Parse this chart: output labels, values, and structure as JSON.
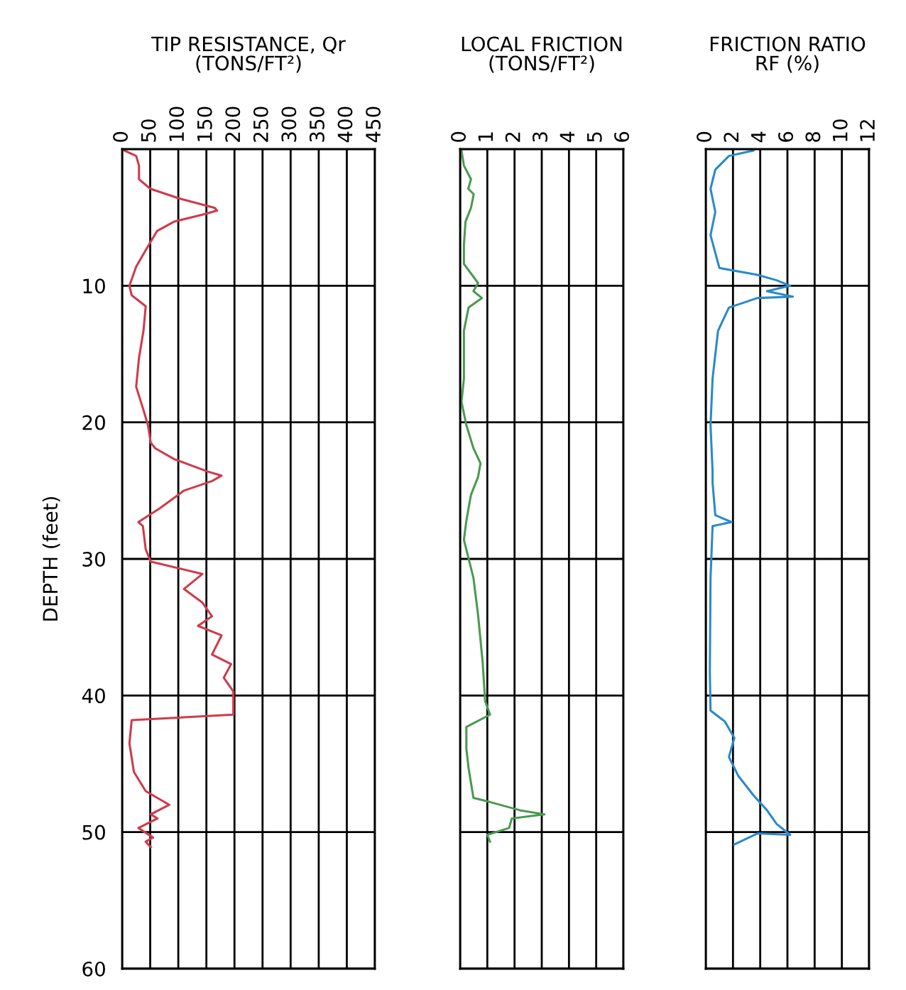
{
  "chart_data": [
    {
      "type": "line",
      "title": "TIP RESISTANCE, Qr\n(TONS/FT²)",
      "ylabel": "DEPTH (feet)",
      "xlim": [
        0,
        450
      ],
      "xticks": [
        0,
        50,
        100,
        150,
        200,
        250,
        300,
        350,
        400,
        450
      ],
      "ylim": [
        60,
        0
      ],
      "yticks": [
        10,
        20,
        30,
        40,
        50,
        60
      ],
      "grid": true,
      "series": [
        {
          "color": "#d03a4a",
          "x": [
            4,
            25,
            30,
            30,
            50,
            101,
            165,
            169,
            143,
            93,
            62,
            42,
            25,
            13,
            17,
            42,
            38,
            30,
            25,
            38,
            46,
            51,
            59,
            93,
            152,
            177,
            160,
            110,
            67,
            29,
            37,
            42,
            51,
            143,
            110,
            143,
            160,
            135,
            177,
            160,
            194,
            181,
            198,
            198,
            17,
            13,
            21,
            42,
            84,
            51,
            63,
            29,
            55,
            42,
            51
          ],
          "values": [
            0.1,
            0.5,
            1.2,
            2.2,
            2.9,
            3.6,
            4.3,
            4.5,
            4.8,
            5.3,
            6.0,
            7.4,
            8.6,
            10.0,
            10.7,
            11.5,
            13.3,
            15.3,
            17.4,
            19.1,
            20.2,
            21.5,
            21.9,
            22.7,
            23.6,
            23.9,
            24.3,
            25.0,
            26.3,
            27.3,
            27.6,
            29.3,
            30.2,
            31.1,
            32.2,
            33.2,
            34.2,
            34.9,
            35.6,
            37.0,
            37.7,
            38.7,
            39.7,
            41.4,
            41.8,
            43.5,
            45.6,
            47.0,
            48.0,
            48.7,
            49.0,
            49.7,
            50.4,
            50.7,
            51.1
          ]
        }
      ]
    },
    {
      "type": "line",
      "title": "LOCAL FRICTION\n(TONS/FT²)",
      "xlim": [
        0,
        6
      ],
      "xticks": [
        0,
        1,
        2,
        3,
        4,
        5,
        6
      ],
      "ylim": [
        60,
        0
      ],
      "yticks": [
        10,
        20,
        30,
        40,
        50,
        60
      ],
      "grid": true,
      "tick_labels": "x",
      "series": [
        {
          "color": "#4a9a50",
          "x": [
            0.05,
            0.14,
            0.4,
            0.3,
            0.5,
            0.4,
            0.2,
            0.14,
            0.14,
            0.66,
            0.49,
            0.8,
            0.31,
            0.14,
            0.14,
            0.05,
            0.23,
            0.49,
            0.75,
            0.66,
            0.4,
            0.23,
            0.14,
            0.49,
            0.66,
            0.83,
            0.92,
            1.1,
            0.23,
            0.23,
            0.31,
            0.49,
            1.1,
            2.2,
            3.1,
            1.9,
            1.8,
            1.0,
            1.1
          ],
          "values": [
            0.1,
            1.2,
            2.2,
            2.9,
            3.3,
            4.3,
            5.3,
            7.0,
            8.4,
            9.8,
            10.4,
            10.9,
            11.6,
            13.3,
            16.8,
            18.5,
            20.2,
            21.9,
            23.0,
            24.0,
            25.3,
            27.2,
            28.6,
            31.4,
            34.1,
            37.6,
            40.4,
            41.4,
            42.3,
            43.9,
            45.3,
            47.5,
            47.8,
            48.4,
            48.7,
            49.0,
            49.7,
            50.2,
            50.7
          ]
        }
      ]
    },
    {
      "type": "line",
      "title": "FRICTION RATIO\nRF (%)",
      "xlim": [
        0,
        12
      ],
      "xticks": [
        0,
        2,
        4,
        6,
        8,
        10,
        12
      ],
      "ylim": [
        60,
        0
      ],
      "yticks": [
        10,
        20,
        30,
        40,
        50,
        60
      ],
      "grid": true,
      "tick_labels": "x",
      "series": [
        {
          "color": "#2a8ac8",
          "x": [
            3.5,
            1.7,
            0.7,
            0.35,
            0.7,
            0.35,
            1.0,
            3.8,
            5.2,
            6.2,
            4.5,
            6.4,
            3.8,
            1.7,
            0.9,
            0.5,
            0.35,
            0.5,
            0.5,
            0.7,
            1.9,
            0.5,
            0.35,
            0.3,
            0.35,
            1.4,
            2.1,
            1.7,
            2.4,
            3.5,
            4.5,
            5.2,
            6.2,
            3.8,
            2.1
          ],
          "values": [
            0.1,
            0.5,
            1.5,
            2.9,
            4.6,
            6.3,
            8.7,
            9.2,
            9.6,
            10.0,
            10.4,
            10.8,
            10.9,
            11.6,
            13.3,
            16.8,
            20.2,
            23.6,
            24.4,
            26.8,
            27.3,
            27.6,
            31.4,
            38.3,
            41.1,
            41.9,
            43.1,
            44.5,
            45.9,
            47.3,
            48.4,
            49.4,
            50.2,
            50.1,
            50.9
          ]
        }
      ]
    }
  ]
}
